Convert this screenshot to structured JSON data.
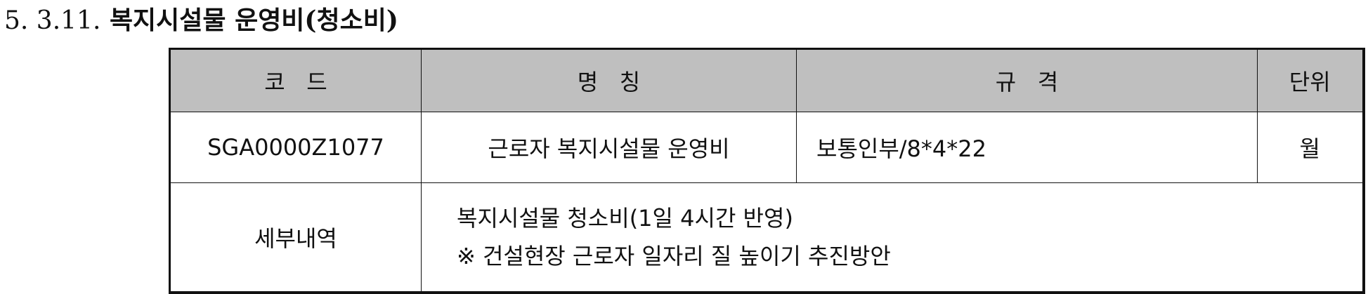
{
  "section": {
    "number": "5. 3.11.",
    "title": "복지시설물 운영비(청소비)"
  },
  "table": {
    "headers": {
      "code": "코   드",
      "name": "명   칭",
      "spec": "규   격",
      "unit": "단위"
    },
    "row": {
      "code": "SGA0000Z1077",
      "name": "근로자 복지시설물 운영비",
      "spec": "보통인부/8*4*22",
      "unit": "월"
    },
    "detail": {
      "label": "세부내역",
      "lines": [
        "복지시설물 청소비(1일 4시간 반영)",
        "※ 건설현장 근로자 일자리 질 높이기 추진방안"
      ]
    }
  },
  "colors": {
    "header_bg": "#bfbfbf",
    "border": "#111111"
  }
}
